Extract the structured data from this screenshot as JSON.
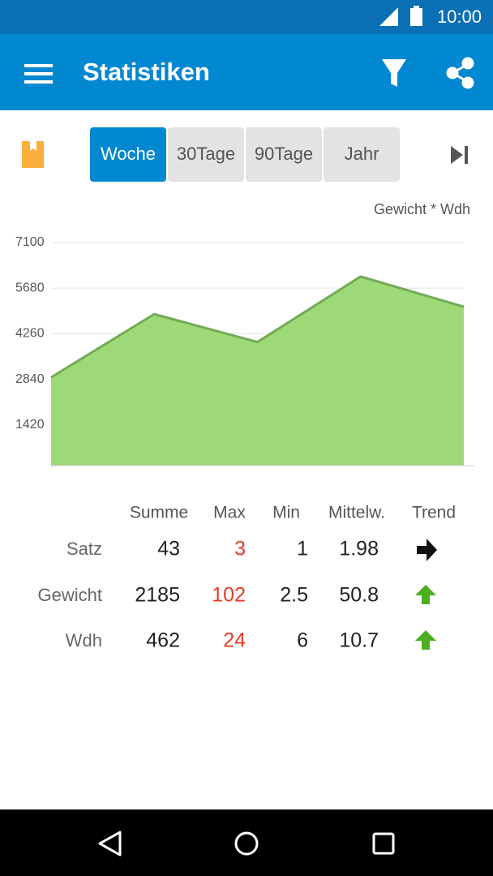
{
  "status_bar": {
    "time": "10:00"
  },
  "app_bar": {
    "title": "Statistiken"
  },
  "tabs": [
    "Woche",
    "30Tage",
    "90Tage",
    "Jahr"
  ],
  "chart_data": {
    "type": "area",
    "y_label": "Gewicht * Wdh",
    "categories": [
      null,
      null,
      null,
      null,
      null
    ],
    "values": [
      2900,
      4870,
      4000,
      6040,
      5100
    ],
    "color": "#9ed977",
    "line_color": "#72ab55",
    "ylim": [
      0,
      7100
    ],
    "yticks": [
      1420,
      2840,
      4260,
      5680,
      7100
    ],
    "grid": true
  },
  "table": {
    "header": [
      "Summe",
      "Max",
      "Min",
      "Mittelw.",
      "Trend"
    ],
    "rows": [
      [
        "Satz",
        43,
        3,
        1,
        1.98
      ],
      [
        "Gewicht",
        2185,
        102,
        2.5,
        50.8
      ],
      [
        "Wdh",
        462,
        24,
        6,
        10.7
      ]
    ]
  }
}
